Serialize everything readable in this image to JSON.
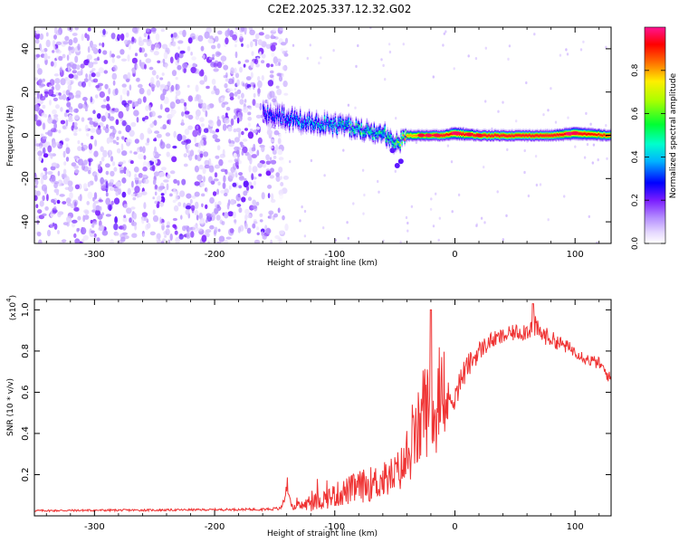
{
  "title": "C2E2.2025.337.12.32.G02",
  "chart_data": [
    {
      "type": "heatmap",
      "title": "C2E2.2025.337.12.32.G02",
      "xlabel": "Height of straight line (km)",
      "ylabel": "Frequency (Hz)",
      "xlim": [
        -350,
        130
      ],
      "ylim": [
        -50,
        50
      ],
      "x_ticks": [
        -300,
        -200,
        -100,
        0,
        100
      ],
      "x_tick_labels": [
        "-300",
        "-200",
        "-100",
        "0",
        "100"
      ],
      "y_ticks": [
        -40,
        -20,
        0,
        20,
        40
      ],
      "y_tick_labels": [
        "-40",
        "-20",
        "0",
        "20",
        "40"
      ],
      "colorbar": {
        "label": "Normalized spectral amplitude",
        "range": [
          0.0,
          1.0
        ],
        "ticks": [
          0.0,
          0.2,
          0.4,
          0.6,
          0.8
        ],
        "tick_labels": [
          "0.0",
          "0.2",
          "0.4",
          "0.6",
          "0.8"
        ],
        "colors": [
          "#ffffff",
          "#e6d9ff",
          "#9b59ff",
          "#6a00ff",
          "#0000ff",
          "#00e5ff",
          "#00ff66",
          "#ffff00",
          "#ff6600",
          "#ff0000",
          "#ff1493"
        ]
      },
      "ridge": {
        "x": [
          -160,
          -140,
          -120,
          -100,
          -80,
          -60,
          -50,
          -40,
          -30,
          -20,
          -10,
          0,
          20,
          40,
          60,
          80,
          100,
          130
        ],
        "center_hz": [
          10,
          8,
          6,
          5,
          3,
          1,
          -4,
          0,
          0,
          0,
          0,
          1,
          0,
          0,
          0,
          0,
          1,
          0
        ],
        "half_width_hz": [
          5,
          5,
          4.5,
          4.5,
          4,
          4,
          4,
          2.5,
          2.5,
          2.5,
          2.5,
          3,
          2.5,
          2.5,
          2.5,
          2.5,
          3,
          2.5
        ],
        "peak_amplitude": [
          0.3,
          0.35,
          0.4,
          0.45,
          0.5,
          0.5,
          0.55,
          0.8,
          0.85,
          0.9,
          0.95,
          0.95,
          0.95,
          0.95,
          0.95,
          0.95,
          0.95,
          0.9
        ]
      },
      "noise_region_km": [
        -350,
        -140
      ]
    },
    {
      "type": "line",
      "xlabel": "Height of straight line (km)",
      "ylabel": "SNR (10 * v/v)",
      "y_scale_label": "(x10",
      "y_scale_exponent": "4",
      "xlim": [
        -350,
        130
      ],
      "ylim": [
        0,
        1.05
      ],
      "x_ticks": [
        -300,
        -200,
        -100,
        0,
        100
      ],
      "x_tick_labels": [
        "-300",
        "-200",
        "-100",
        "0",
        "100"
      ],
      "y_ticks": [
        0.2,
        0.4,
        0.6,
        0.8,
        1.0
      ],
      "y_tick_labels": [
        "0.2",
        "0.4",
        "0.6",
        "0.8",
        "1.0"
      ],
      "series": [
        {
          "name": "SNR",
          "color": "#ef3333",
          "x": [
            -350,
            -300,
            -250,
            -200,
            -160,
            -145,
            -140,
            -135,
            -120,
            -100,
            -80,
            -60,
            -50,
            -40,
            -30,
            -25,
            -20,
            -10,
            0,
            10,
            20,
            30,
            40,
            50,
            60,
            65,
            70,
            80,
            90,
            100,
            110,
            120,
            130
          ],
          "y": [
            0.025,
            0.027,
            0.028,
            0.03,
            0.032,
            0.035,
            0.11,
            0.04,
            0.06,
            0.1,
            0.14,
            0.17,
            0.2,
            0.26,
            0.42,
            0.55,
            0.45,
            0.5,
            0.6,
            0.72,
            0.8,
            0.85,
            0.87,
            0.89,
            0.9,
            0.93,
            0.89,
            0.86,
            0.83,
            0.8,
            0.76,
            0.74,
            0.66
          ],
          "noise_amplitude": [
            0.005,
            0.005,
            0.005,
            0.005,
            0.006,
            0.008,
            0.03,
            0.01,
            0.04,
            0.06,
            0.08,
            0.09,
            0.1,
            0.12,
            0.2,
            0.25,
            0.2,
            0.14,
            0.08,
            0.06,
            0.05,
            0.04,
            0.04,
            0.04,
            0.05,
            0.06,
            0.05,
            0.04,
            0.035,
            0.03,
            0.03,
            0.03,
            0.03
          ]
        }
      ]
    }
  ]
}
